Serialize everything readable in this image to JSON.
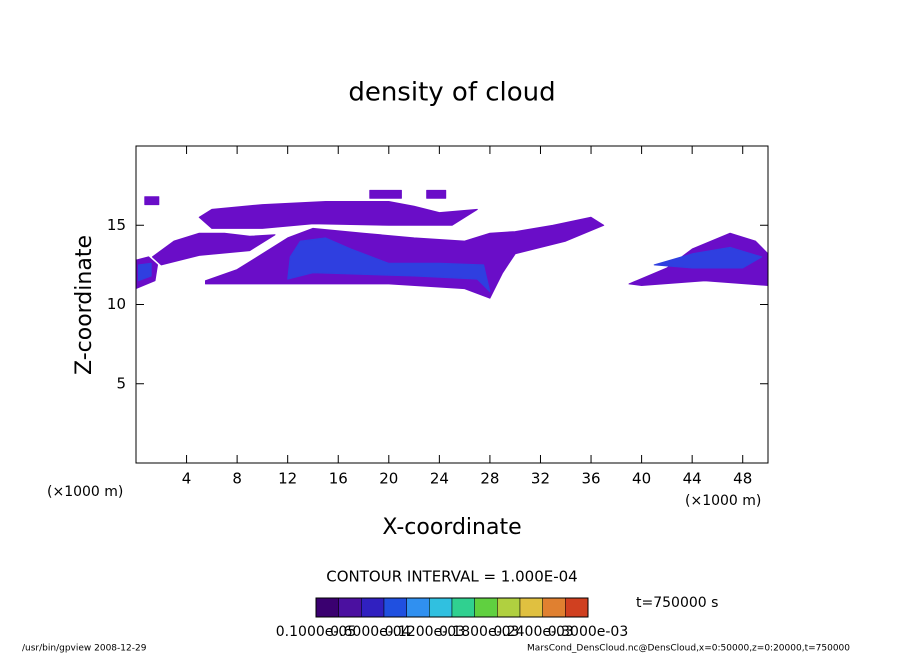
{
  "chart_data": {
    "type": "contour",
    "title": "density of cloud",
    "x_label": "X-coordinate",
    "y_label": "Z-coordinate",
    "x_unit": "(×1000 m)",
    "y_unit": "(×1000 m)",
    "xlim": [
      0,
      50
    ],
    "ylim": [
      0,
      20
    ],
    "xticks": [
      4,
      8,
      12,
      16,
      20,
      24,
      28,
      32,
      36,
      40,
      44,
      48
    ],
    "yticks": [
      5,
      10,
      15
    ],
    "contours": [
      {
        "level": 2e-05,
        "color": "#6a0dc8",
        "x": [
          5.5,
          8,
          10,
          12,
          14,
          18,
          22,
          26,
          28,
          30,
          33,
          36,
          37,
          34,
          30,
          29,
          28,
          26,
          20,
          12,
          5.5
        ],
        "z": [
          11.5,
          12.2,
          13.2,
          14.2,
          14.8,
          14.5,
          14.2,
          14.0,
          14.5,
          14.6,
          15.0,
          15.5,
          15.0,
          14.0,
          13.2,
          12.0,
          10.4,
          11.0,
          11.3,
          11.3,
          11.3
        ]
      },
      {
        "level": 2e-05,
        "color": "#6a0dc8",
        "x": [
          5,
          6,
          10,
          15,
          20,
          22,
          24,
          27,
          25,
          20,
          14,
          10,
          6
        ],
        "z": [
          15.5,
          16.0,
          16.3,
          16.5,
          16.5,
          16.2,
          15.8,
          16.0,
          15.0,
          15.0,
          15.1,
          14.8,
          14.8
        ]
      },
      {
        "level": 2e-05,
        "color": "#6a0dc8",
        "x": [
          0,
          1.5,
          1.7,
          1,
          0
        ],
        "z": [
          11,
          11.5,
          12.5,
          13,
          12.8
        ]
      },
      {
        "level": 2e-05,
        "color": "#6a0dc8",
        "x": [
          1.3,
          3,
          5,
          7,
          9,
          11,
          9,
          5,
          2
        ],
        "z": [
          13,
          14,
          14.5,
          14.5,
          14.3,
          14.4,
          13.4,
          13.1,
          12.5
        ]
      },
      {
        "level": 2e-05,
        "color": "#6a0dc8",
        "x": [
          39,
          42,
          44,
          47,
          49,
          50,
          50,
          45,
          40
        ],
        "z": [
          11.3,
          12.3,
          13.5,
          14.5,
          14.0,
          13.2,
          11.2,
          11.5,
          11.2
        ]
      },
      {
        "level": 2e-05,
        "color": "#6a0dc8",
        "x": [
          0.7,
          1.8,
          1.8,
          0.7
        ],
        "z": [
          16.3,
          16.3,
          16.8,
          16.8
        ]
      },
      {
        "level": 2e-05,
        "color": "#6a0dc8",
        "x": [
          18.5,
          21,
          21,
          18.5
        ],
        "z": [
          16.7,
          16.7,
          17.2,
          17.2
        ]
      },
      {
        "level": 2e-05,
        "color": "#6a0dc8",
        "x": [
          23,
          24.5,
          24.5,
          23
        ],
        "z": [
          16.7,
          16.7,
          17.2,
          17.2
        ]
      },
      {
        "level": 0.0001,
        "color": "#2f3fe0",
        "x": [
          12,
          14,
          22,
          27,
          28,
          27.5,
          24,
          20,
          17,
          15,
          13,
          12.2
        ],
        "z": [
          11.6,
          12.0,
          11.8,
          11.6,
          10.8,
          12.5,
          12.6,
          12.6,
          13.5,
          14.2,
          14.0,
          13
        ]
      },
      {
        "level": 0.0001,
        "color": "#2f3fe0",
        "x": [
          41,
          44,
          47,
          49.5,
          48,
          44
        ],
        "z": [
          12.5,
          13.2,
          13.6,
          13.0,
          12.3,
          12.3
        ]
      },
      {
        "level": 0.0001,
        "color": "#2f3fe0",
        "x": [
          0.2,
          1.2,
          1.2,
          0.2
        ],
        "z": [
          11.5,
          11.8,
          12.6,
          12.5
        ]
      }
    ],
    "contour_interval": "CONTOUR INTERVAL = 1.000E-04",
    "time_label": "t=750000 s",
    "colorbar_colors": [
      "#3a0070",
      "#4b10a0",
      "#3020c0",
      "#2050e0",
      "#3090f0",
      "#30c0e0",
      "#30d090",
      "#60d040",
      "#b0d040",
      "#e0c040",
      "#e08030",
      "#d04020"
    ],
    "colorbar_labels": [
      "0.1000e-05",
      "0.6000e-04",
      "0.1200e-03",
      "0.1800e-03",
      "0.2400e-03",
      "0.3000e-03"
    ],
    "footer_left": "/usr/bin/gpview  2008-12-29",
    "footer_right": "MarsCond_DensCloud.nc@DensCloud,x=0:50000,z=0:20000,t=750000"
  }
}
